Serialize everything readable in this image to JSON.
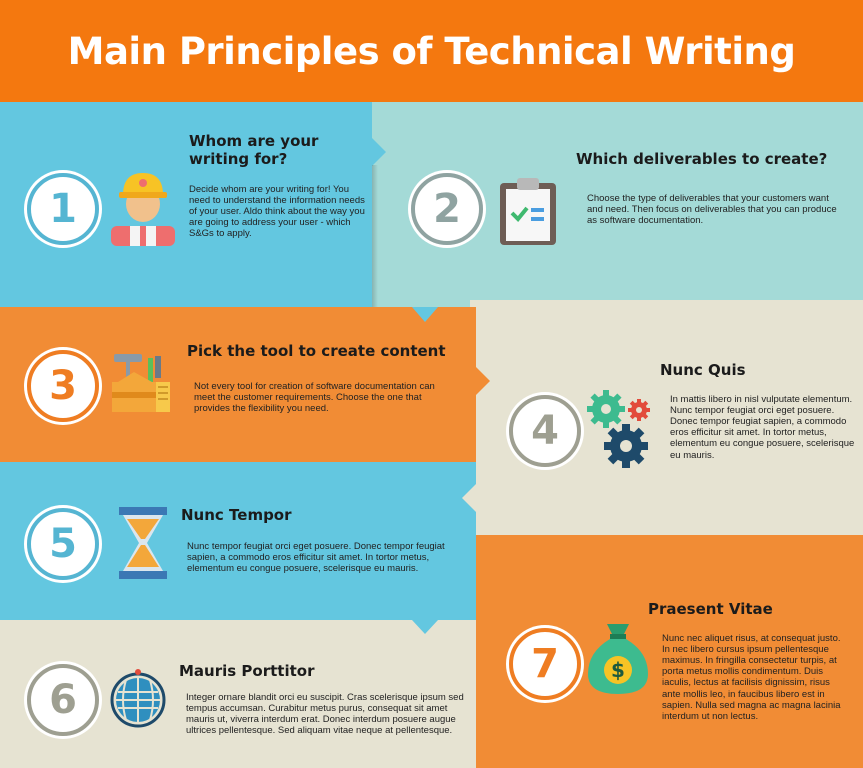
{
  "title": "Main Principles of Technical Writing",
  "colors": {
    "orange": "#f4780f",
    "orange_section": "#f18c35",
    "blue_section": "#63c7e0",
    "teal_section": "#a4dad7",
    "cream_section": "#e6e3d2",
    "circle_blue": "#55b5d2",
    "circle_teal": "#8fa3a1",
    "circle_orange": "#ef7d22",
    "circle_gray": "#9e9f91"
  },
  "sections": [
    {
      "number": "1",
      "heading": "Whom are your writing for?",
      "text": "Decide whom are your writing for! You need to understand the information needs of your user. Aldo think about the way you are going to address your user - which S&Gs to apply.",
      "icon": "user-with-helmet-icon"
    },
    {
      "number": "2",
      "heading": "Which deliverables to create?",
      "text": "Choose the type of deliverables that your customers want and need. Then focus on deliverables that you can produce as software documentation.",
      "icon": "clipboard-checklist-icon"
    },
    {
      "number": "3",
      "heading": "Pick the tool to create content",
      "text": "Not every tool for creation of software documentation can meet the customer requirements. Choose the one that provides the flexibility you need.",
      "icon": "toolbox-icon"
    },
    {
      "number": "4",
      "heading": "Nunc Quis",
      "text": "In mattis libero in nisl vulputate elementum. Nunc tempor feugiat orci eget posuere. Donec tempor feugiat sapien, a commodo eros efficitur sit amet. In tortor metus, elementum eu congue posuere, scelerisque eu mauris.",
      "icon": "gears-icon"
    },
    {
      "number": "5",
      "heading": "Nunc Tempor",
      "text": "Nunc tempor feugiat orci eget posuere. Donec tempor feugiat sapien, a commodo eros efficitur sit amet. In tortor metus, elementum eu congue posuere, scelerisque eu mauris.",
      "icon": "hourglass-icon"
    },
    {
      "number": "6",
      "heading": "Mauris Porttitor",
      "text": "Integer ornare blandit orci eu suscipit. Cras scelerisque ipsum sed tempus accumsan. Curabitur metus purus, consequat sit amet mauris ut, viverra interdum erat. Donec interdum posuere augue ultrices pellentesque. Sed aliquam vitae neque at pellentesque.",
      "icon": "globe-icon"
    },
    {
      "number": "7",
      "heading": "Praesent Vitae",
      "text": "Nunc nec aliquet risus, at consequat justo. In nec libero cursus ipsum pellentesque maximus. In fringilla consectetur turpis, at porta metus mollis condimentum. Duis iaculis, lectus at facilisis dignissim, risus ante mollis leo, in faucibus libero est in sapien. Nulla sed magna ac magna lacinia interdum ut non lectus.",
      "icon": "money-bag-icon"
    }
  ]
}
